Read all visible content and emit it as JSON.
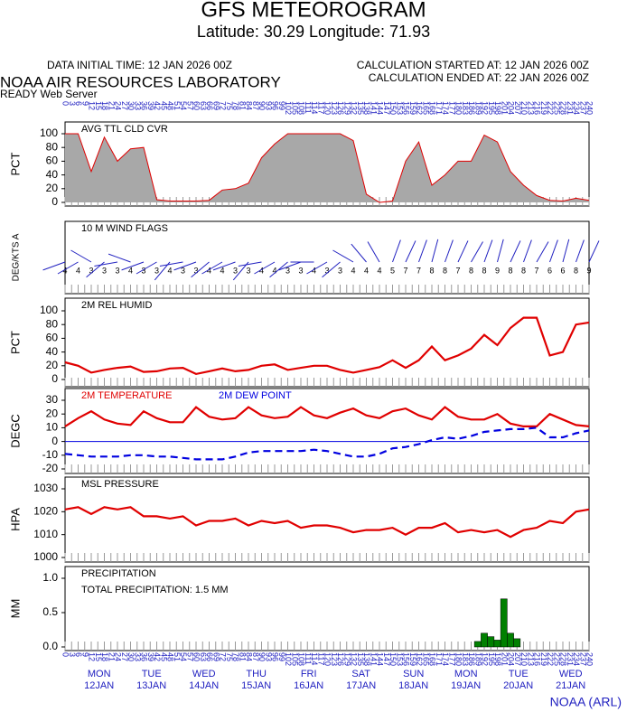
{
  "header": {
    "title": "GFS METEOROGRAM",
    "subtitle": "Latitude: 30.29 Longitude:  71.93",
    "data_initial": "DATA INITIAL TIME: 12 JAN 2026 00Z",
    "calc_started": "CALCULATION STARTED AT: 12 JAN 2026 00Z",
    "calc_ended": "CALCULATION ENDED AT: 22 JAN 2026 00Z",
    "org": "NOAA AIR RESOURCES LABORATORY",
    "server": "READY Web Server",
    "footer": "NOAA (ARL)"
  },
  "x_hours": [
    0,
    3,
    6,
    9,
    12,
    15,
    18,
    21,
    24,
    27,
    30,
    33,
    36,
    39,
    42,
    45,
    48,
    51,
    54,
    57,
    60,
    63,
    66,
    69,
    72,
    75,
    78,
    81,
    84,
    87,
    90,
    93,
    96,
    99,
    102,
    105,
    108,
    111,
    114,
    117,
    120,
    123,
    126,
    129,
    132,
    135,
    138,
    141,
    144,
    147,
    150,
    153,
    156,
    159,
    162,
    165,
    168,
    171,
    174,
    177,
    180,
    183,
    186,
    189,
    192,
    195,
    198,
    201,
    204,
    207,
    210,
    213,
    216,
    219,
    222,
    225,
    228,
    231,
    234,
    237,
    240
  ],
  "days": [
    "MON",
    "TUE",
    "WED",
    "THU",
    "FRI",
    "SAT",
    "SUN",
    "MON",
    "TUE",
    "WED"
  ],
  "dates": [
    "12JAN",
    "13JAN",
    "14JAN",
    "15JAN",
    "16JAN",
    "17JAN",
    "18JAN",
    "19JAN",
    "20JAN",
    "21JAN"
  ],
  "chart_data": [
    {
      "type": "area",
      "title": "AVG TTL CLD CVR",
      "ylabel": "PCT",
      "color": "#a8a8a8",
      "line_color": "#e00000",
      "x": [
        0,
        6,
        12,
        18,
        24,
        30,
        36,
        42,
        48,
        54,
        60,
        66,
        72,
        78,
        84,
        90,
        96,
        102,
        108,
        114,
        120,
        126,
        132,
        138,
        144,
        150,
        156,
        162,
        168,
        174,
        180,
        186,
        192,
        198,
        204,
        210,
        216,
        222,
        228,
        234,
        240
      ],
      "values": [
        100,
        100,
        45,
        95,
        60,
        78,
        80,
        4,
        2,
        2,
        2,
        3,
        18,
        20,
        28,
        65,
        85,
        100,
        100,
        100,
        100,
        100,
        90,
        12,
        0,
        2,
        60,
        88,
        25,
        40,
        60,
        60,
        98,
        88,
        45,
        25,
        10,
        3,
        2,
        6,
        3
      ],
      "xlim": [
        0,
        240
      ],
      "ylim": [
        0,
        100
      ],
      "yticks": [
        0,
        20,
        40,
        60,
        80,
        100
      ]
    },
    {
      "type": "wind",
      "title": "10 M  WIND FLAGS",
      "ylabel": "DEG/KTS  A",
      "color": "#2020c0",
      "x": [
        0,
        6,
        12,
        18,
        24,
        30,
        36,
        42,
        48,
        54,
        60,
        66,
        72,
        78,
        84,
        90,
        96,
        102,
        108,
        114,
        120,
        126,
        132,
        138,
        144,
        150,
        156,
        162,
        168,
        174,
        180,
        186,
        192,
        198,
        204,
        210,
        216,
        222,
        228,
        234,
        240
      ],
      "speeds": [
        4,
        4,
        3,
        3,
        3,
        4,
        3,
        3,
        4,
        3,
        3,
        4,
        4,
        3,
        3,
        4,
        4,
        3,
        3,
        4,
        3,
        3,
        4,
        4,
        4,
        5,
        7,
        7,
        8,
        8,
        7,
        8,
        8,
        9,
        8,
        8,
        7,
        6,
        6,
        8,
        9
      ],
      "directions": [
        250,
        240,
        300,
        230,
        260,
        290,
        250,
        240,
        220,
        260,
        250,
        230,
        240,
        250,
        220,
        260,
        240,
        230,
        250,
        270,
        240,
        230,
        300,
        320,
        330,
        20,
        25,
        20,
        15,
        20,
        25,
        30,
        20,
        15,
        25,
        20,
        30,
        20,
        15,
        20,
        25
      ],
      "xlim": [
        0,
        240
      ]
    },
    {
      "type": "line",
      "title": "2M REL HUMID",
      "ylabel": "PCT",
      "color": "#e00000",
      "x": [
        0,
        6,
        12,
        18,
        24,
        30,
        36,
        42,
        48,
        54,
        60,
        66,
        72,
        78,
        84,
        90,
        96,
        102,
        108,
        114,
        120,
        126,
        132,
        138,
        144,
        150,
        156,
        162,
        168,
        174,
        180,
        186,
        192,
        198,
        204,
        210,
        216,
        222,
        228,
        234,
        240
      ],
      "values": [
        25,
        20,
        10,
        14,
        17,
        19,
        11,
        12,
        16,
        17,
        8,
        12,
        16,
        12,
        14,
        20,
        22,
        14,
        17,
        20,
        20,
        14,
        10,
        14,
        18,
        28,
        17,
        28,
        48,
        28,
        35,
        45,
        65,
        50,
        75,
        90,
        90,
        35,
        40,
        80,
        83
      ],
      "xlim": [
        0,
        240
      ],
      "ylim": [
        0,
        100
      ],
      "yticks": [
        0,
        20,
        40,
        60,
        80,
        100
      ]
    },
    {
      "type": "line",
      "ylabel": "DEGC",
      "hline": 0,
      "hline_color": "#0000e0",
      "x": [
        0,
        6,
        12,
        18,
        24,
        30,
        36,
        42,
        48,
        54,
        60,
        66,
        72,
        78,
        84,
        90,
        96,
        102,
        108,
        114,
        120,
        126,
        132,
        138,
        144,
        150,
        156,
        162,
        168,
        174,
        180,
        186,
        192,
        198,
        204,
        210,
        216,
        222,
        228,
        234,
        240
      ],
      "series": [
        {
          "name": "2M TEMPERATURE",
          "color": "#e00000",
          "dashed": false,
          "values": [
            11,
            17,
            22,
            16,
            13,
            12,
            22,
            17,
            14,
            14,
            25,
            18,
            16,
            17,
            25,
            19,
            17,
            18,
            25,
            19,
            17,
            21,
            24,
            19,
            17,
            22,
            24,
            19,
            16,
            25,
            18,
            16,
            16,
            20,
            13,
            11,
            11,
            20,
            16,
            12,
            11
          ]
        },
        {
          "name": "2M  DEW POINT",
          "color": "#0000e0",
          "dashed": true,
          "values": [
            -9,
            -10,
            -11,
            -11,
            -11,
            -10,
            -10,
            -11,
            -11,
            -12,
            -13,
            -13,
            -13,
            -11,
            -8,
            -7,
            -7,
            -7,
            -7,
            -6,
            -7,
            -9,
            -11,
            -11,
            -9,
            -5,
            -4,
            -2,
            1,
            3,
            2,
            4,
            7,
            8,
            9,
            9,
            10,
            3,
            3,
            6,
            8
          ]
        }
      ],
      "xlim": [
        0,
        240
      ],
      "ylim": [
        -20,
        30
      ],
      "yticks": [
        -20,
        -10,
        0,
        10,
        20,
        30
      ]
    },
    {
      "type": "line",
      "title": "MSL PRESSURE",
      "ylabel": "HPA",
      "color": "#e00000",
      "x": [
        0,
        6,
        12,
        18,
        24,
        30,
        36,
        42,
        48,
        54,
        60,
        66,
        72,
        78,
        84,
        90,
        96,
        102,
        108,
        114,
        120,
        126,
        132,
        138,
        144,
        150,
        156,
        162,
        168,
        174,
        180,
        186,
        192,
        198,
        204,
        210,
        216,
        222,
        228,
        234,
        240
      ],
      "values": [
        1021,
        1022,
        1019,
        1022,
        1021,
        1022,
        1018,
        1018,
        1017,
        1018,
        1014,
        1016,
        1016,
        1017,
        1014,
        1016,
        1015,
        1016,
        1013,
        1014,
        1014,
        1013,
        1011,
        1012,
        1012,
        1013,
        1010,
        1013,
        1013,
        1015,
        1011,
        1012,
        1011,
        1012,
        1009,
        1012,
        1013,
        1016,
        1015,
        1020,
        1021
      ],
      "xlim": [
        0,
        240
      ],
      "ylim": [
        1000,
        1030
      ],
      "yticks": [
        1000,
        1010,
        1020,
        1030
      ]
    },
    {
      "type": "bar",
      "title": "PRECIPITATION",
      "annotation": "TOTAL PRECIPITATION:  1.5 MM",
      "ylabel": "MM",
      "color": "#008000",
      "x": [
        189,
        192,
        195,
        198,
        201,
        204,
        207
      ],
      "values": [
        0.08,
        0.2,
        0.15,
        0.1,
        0.7,
        0.2,
        0.12
      ],
      "xlim": [
        0,
        240
      ],
      "ylim": [
        0,
        1
      ],
      "yticks": [
        {
          "value": 0,
          "label": "0.0"
        },
        0.5,
        {
          "value": 1,
          "label": "1.0"
        }
      ]
    }
  ]
}
